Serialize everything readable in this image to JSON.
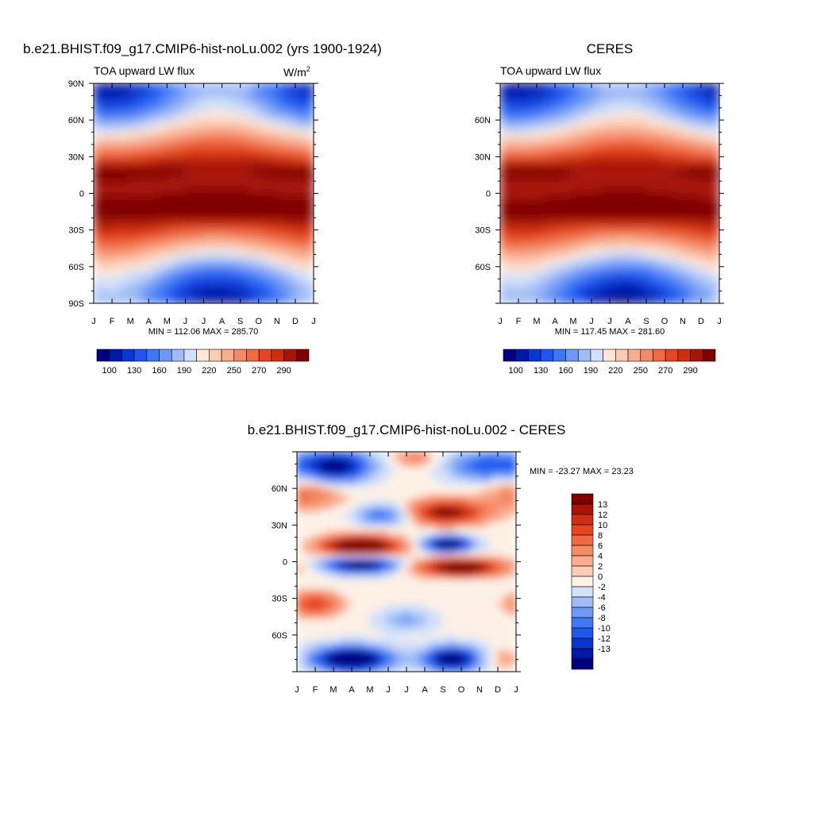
{
  "chart_data": [
    {
      "type": "heatmap",
      "title": "b.e21.BHIST.f09_g17.CMIP6-hist-noLu.002 (yrs 1900-1924)",
      "left_label": "TOA upward LW flux",
      "units": "W/m",
      "units_sup": "2",
      "x_tick_labels": [
        "J",
        "F",
        "M",
        "A",
        "M",
        "J",
        "J",
        "A",
        "S",
        "O",
        "N",
        "D",
        "J"
      ],
      "y_tick_labels": [
        "90N",
        "60N",
        "30N",
        "0",
        "30S",
        "60S",
        "90S"
      ],
      "ylim": [
        -90,
        90
      ],
      "stats": "MIN = 112.06 MAX = 285.70",
      "min": 112.06,
      "max": 285.7,
      "colorbar": {
        "levels": [
          100,
          110,
          120,
          130,
          140,
          150,
          160,
          170,
          180,
          190,
          200,
          210,
          220,
          230,
          240,
          250,
          260,
          270,
          280,
          290
        ],
        "labels": [
          "100",
          "130",
          "160",
          "190",
          "220",
          "250",
          "270",
          "290"
        ]
      }
    },
    {
      "type": "heatmap",
      "title": "CERES",
      "left_label": "TOA upward LW flux",
      "x_tick_labels": [
        "J",
        "F",
        "M",
        "A",
        "M",
        "J",
        "J",
        "A",
        "S",
        "O",
        "N",
        "D",
        "J"
      ],
      "y_tick_labels": [
        "60N",
        "30N",
        "0",
        "30S",
        "60S"
      ],
      "ylim": [
        -90,
        90
      ],
      "stats": "MIN = 117.45 MAX = 281.60",
      "min": 117.45,
      "max": 281.6,
      "colorbar": {
        "labels": [
          "100",
          "130",
          "160",
          "190",
          "220",
          "250",
          "270",
          "290"
        ]
      }
    },
    {
      "type": "heatmap",
      "title": "b.e21.BHIST.f09_g17.CMIP6-hist-noLu.002 - CERES",
      "x_tick_labels": [
        "J",
        "F",
        "M",
        "A",
        "M",
        "J",
        "J",
        "A",
        "S",
        "O",
        "N",
        "D",
        "J"
      ],
      "y_tick_labels": [
        "60N",
        "30N",
        "0",
        "30S",
        "60S"
      ],
      "ylim": [
        -90,
        90
      ],
      "stats": "MIN = -23.27 MAX =  23.23",
      "min": -23.27,
      "max": 23.23,
      "colorbar": {
        "labels": [
          "13",
          "12",
          "10",
          "8",
          "6",
          "4",
          "2",
          "0",
          "-2",
          "-4",
          "-6",
          "-8",
          "-10",
          "-12",
          "-13"
        ]
      }
    }
  ],
  "colors": {
    "abs_palette": [
      "#00007f",
      "#0018a8",
      "#0a36d0",
      "#1e56ee",
      "#3e78f6",
      "#6e98f6",
      "#a0bcf6",
      "#d2e1fa",
      "#fde8d8",
      "#fbccb4",
      "#f9ac8e",
      "#f58a66",
      "#f06a42",
      "#e4461e",
      "#cf2e10",
      "#a81408",
      "#7f0000"
    ],
    "diff_palette": [
      "#00007f",
      "#0018a8",
      "#0a36d0",
      "#1e56ee",
      "#3e78f6",
      "#6e98f6",
      "#a0bcf6",
      "#d2e1fa",
      "#fdf1e6",
      "#fbccb4",
      "#f9ac8e",
      "#f58a66",
      "#f06a42",
      "#e4461e",
      "#cf2e10",
      "#a81408",
      "#7f0000"
    ]
  }
}
